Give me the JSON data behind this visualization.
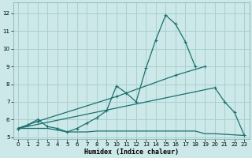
{
  "xlabel": "Humidex (Indice chaleur)",
  "xlim": [
    -0.5,
    23.5
  ],
  "ylim": [
    4.9,
    12.6
  ],
  "yticks": [
    5,
    6,
    7,
    8,
    9,
    10,
    11,
    12
  ],
  "xticks": [
    0,
    1,
    2,
    3,
    4,
    5,
    6,
    7,
    8,
    9,
    10,
    11,
    12,
    13,
    14,
    15,
    16,
    17,
    18,
    19,
    20,
    21,
    22,
    23
  ],
  "bg_color": "#cce8e8",
  "grid_color": "#aacfcf",
  "line_color": "#1a7070",
  "line_width": 0.9,
  "marker": "+",
  "marker_size": 3.5,
  "line1_x": [
    0,
    1,
    2,
    3,
    4,
    5,
    6,
    7,
    8,
    9,
    10,
    11,
    12,
    13,
    14,
    15,
    16,
    17,
    18
  ],
  "line1_y": [
    5.5,
    5.7,
    6.0,
    5.6,
    5.5,
    5.3,
    5.5,
    5.8,
    6.1,
    6.5,
    7.9,
    7.5,
    7.0,
    8.9,
    10.5,
    11.9,
    11.4,
    10.4,
    9.0
  ],
  "line2_x": [
    0,
    2,
    10,
    16,
    19
  ],
  "line2_y": [
    5.5,
    5.9,
    7.3,
    8.5,
    9.0
  ],
  "line3_x": [
    0,
    20,
    21,
    22,
    23
  ],
  "line3_y": [
    5.5,
    7.8,
    7.0,
    6.4,
    5.1
  ],
  "line4_x": [
    0,
    1,
    2,
    3,
    4,
    5,
    6,
    7,
    8,
    9,
    10,
    11,
    12,
    13,
    14,
    15,
    16,
    17,
    18,
    19,
    20,
    23
  ],
  "line4_y": [
    5.5,
    5.5,
    5.5,
    5.5,
    5.4,
    5.3,
    5.3,
    5.3,
    5.35,
    5.35,
    5.35,
    5.35,
    5.35,
    5.35,
    5.35,
    5.35,
    5.35,
    5.35,
    5.35,
    5.2,
    5.2,
    5.1
  ],
  "xlabel_fontsize": 6.0,
  "tick_fontsize": 5.0
}
